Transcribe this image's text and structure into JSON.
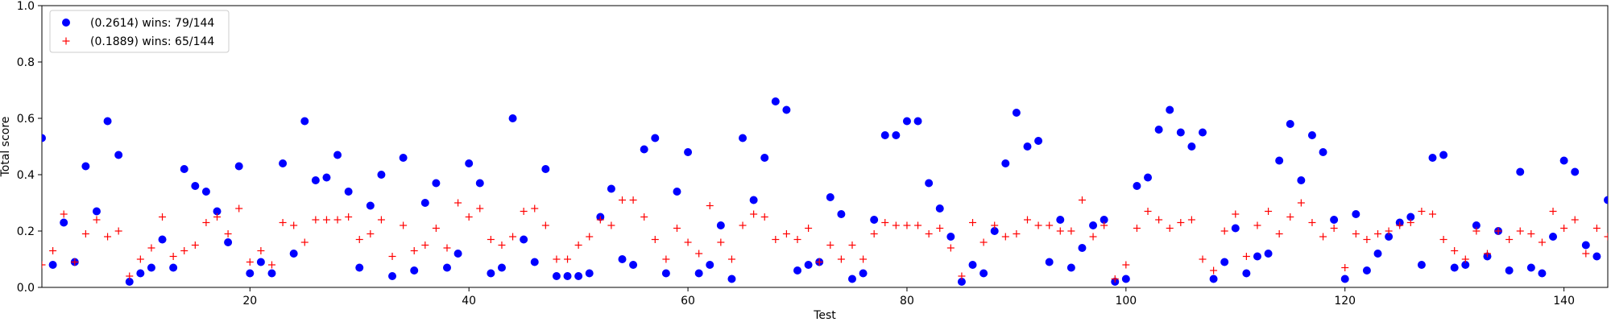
{
  "chart_data": {
    "type": "scatter",
    "xlabel": "Test",
    "ylabel": "Total score",
    "xlim": [
      1,
      144
    ],
    "ylim": [
      0,
      1.0
    ],
    "xticks": [
      20,
      40,
      60,
      80,
      100,
      120,
      140
    ],
    "yticks": [
      0.0,
      0.2,
      0.4,
      0.6,
      0.8,
      1.0
    ],
    "grid": false,
    "legend_position": "top-left",
    "x": [
      1,
      2,
      3,
      4,
      5,
      6,
      7,
      8,
      9,
      10,
      11,
      12,
      13,
      14,
      15,
      16,
      17,
      18,
      19,
      20,
      21,
      22,
      23,
      24,
      25,
      26,
      27,
      28,
      29,
      30,
      31,
      32,
      33,
      34,
      35,
      36,
      37,
      38,
      39,
      40,
      41,
      42,
      43,
      44,
      45,
      46,
      47,
      48,
      49,
      50,
      51,
      52,
      53,
      54,
      55,
      56,
      57,
      58,
      59,
      60,
      61,
      62,
      63,
      64,
      65,
      66,
      67,
      68,
      69,
      70,
      71,
      72,
      73,
      74,
      75,
      76,
      77,
      78,
      79,
      80,
      81,
      82,
      83,
      84,
      85,
      86,
      87,
      88,
      89,
      90,
      91,
      92,
      93,
      94,
      95,
      96,
      97,
      98,
      99,
      100,
      101,
      102,
      103,
      104,
      105,
      106,
      107,
      108,
      109,
      110,
      111,
      112,
      113,
      114,
      115,
      116,
      117,
      118,
      119,
      120,
      121,
      122,
      123,
      124,
      125,
      126,
      127,
      128,
      129,
      130,
      131,
      132,
      133,
      134,
      135,
      136,
      137,
      138,
      139,
      140,
      141,
      142,
      143,
      144
    ],
    "series": [
      {
        "name": "(0.2614) wins: 79/144",
        "marker": "circle",
        "color": "#0000ff",
        "values": [
          0.53,
          0.08,
          0.23,
          0.09,
          0.43,
          0.27,
          0.59,
          0.47,
          0.02,
          0.05,
          0.07,
          0.17,
          0.07,
          0.42,
          0.36,
          0.34,
          0.27,
          0.16,
          0.43,
          0.05,
          0.09,
          0.05,
          0.44,
          0.12,
          0.59,
          0.38,
          0.39,
          0.47,
          0.34,
          0.07,
          0.29,
          0.4,
          0.04,
          0.46,
          0.06,
          0.3,
          0.37,
          0.07,
          0.12,
          0.44,
          0.37,
          0.05,
          0.07,
          0.6,
          0.17,
          0.09,
          0.42,
          0.04,
          0.04,
          0.04,
          0.05,
          0.25,
          0.35,
          0.1,
          0.08,
          0.49,
          0.53,
          0.05,
          0.34,
          0.48,
          0.05,
          0.08,
          0.22,
          0.03,
          0.53,
          0.31,
          0.46,
          0.66,
          0.63,
          0.06,
          0.08,
          0.09,
          0.32,
          0.26,
          0.03,
          0.05,
          0.24,
          0.54,
          0.54,
          0.59,
          0.59,
          0.37,
          0.28,
          0.18,
          0.02,
          0.08,
          0.05,
          0.2,
          0.44,
          0.62,
          0.5,
          0.52,
          0.09,
          0.24,
          0.07,
          0.14,
          0.22,
          0.24,
          0.02,
          0.03,
          0.36,
          0.39,
          0.56,
          0.63,
          0.55,
          0.5,
          0.55,
          0.03,
          0.09,
          0.21,
          0.05,
          0.11,
          0.12,
          0.45,
          0.58,
          0.38,
          0.54,
          0.48,
          0.24,
          0.03,
          0.26,
          0.06,
          0.12,
          0.18,
          0.23,
          0.25,
          0.08,
          0.46,
          0.47,
          0.07,
          0.08,
          0.22,
          0.11,
          0.2,
          0.06,
          0.41,
          0.07,
          0.05,
          0.18,
          0.45,
          0.41,
          0.15,
          0.11,
          0.31
        ]
      },
      {
        "name": "(0.1889) wins: 65/144",
        "marker": "plus",
        "color": "#ff0000",
        "values": [
          0.08,
          0.13,
          0.26,
          0.09,
          0.19,
          0.24,
          0.18,
          0.2,
          0.04,
          0.1,
          0.14,
          0.25,
          0.11,
          0.13,
          0.15,
          0.23,
          0.25,
          0.19,
          0.28,
          0.09,
          0.13,
          0.08,
          0.23,
          0.22,
          0.16,
          0.24,
          0.24,
          0.24,
          0.25,
          0.17,
          0.19,
          0.24,
          0.11,
          0.22,
          0.13,
          0.15,
          0.21,
          0.14,
          0.3,
          0.25,
          0.28,
          0.17,
          0.15,
          0.18,
          0.27,
          0.28,
          0.22,
          0.1,
          0.1,
          0.15,
          0.18,
          0.24,
          0.22,
          0.31,
          0.31,
          0.25,
          0.17,
          0.1,
          0.21,
          0.16,
          0.12,
          0.29,
          0.16,
          0.1,
          0.22,
          0.26,
          0.25,
          0.17,
          0.19,
          0.17,
          0.21,
          0.09,
          0.15,
          0.1,
          0.15,
          0.1,
          0.19,
          0.23,
          0.22,
          0.22,
          0.22,
          0.19,
          0.21,
          0.14,
          0.04,
          0.23,
          0.16,
          0.22,
          0.18,
          0.19,
          0.24,
          0.22,
          0.22,
          0.2,
          0.2,
          0.31,
          0.18,
          0.22,
          0.03,
          0.08,
          0.21,
          0.27,
          0.24,
          0.21,
          0.23,
          0.24,
          0.1,
          0.06,
          0.2,
          0.26,
          0.11,
          0.22,
          0.27,
          0.19,
          0.25,
          0.3,
          0.23,
          0.18,
          0.21,
          0.07,
          0.19,
          0.17,
          0.19,
          0.2,
          0.22,
          0.23,
          0.27,
          0.26,
          0.17,
          0.13,
          0.1,
          0.2,
          0.12,
          0.2,
          0.17,
          0.2,
          0.19,
          0.16,
          0.27,
          0.21,
          0.24,
          0.12,
          0.21,
          0.18
        ]
      }
    ]
  }
}
